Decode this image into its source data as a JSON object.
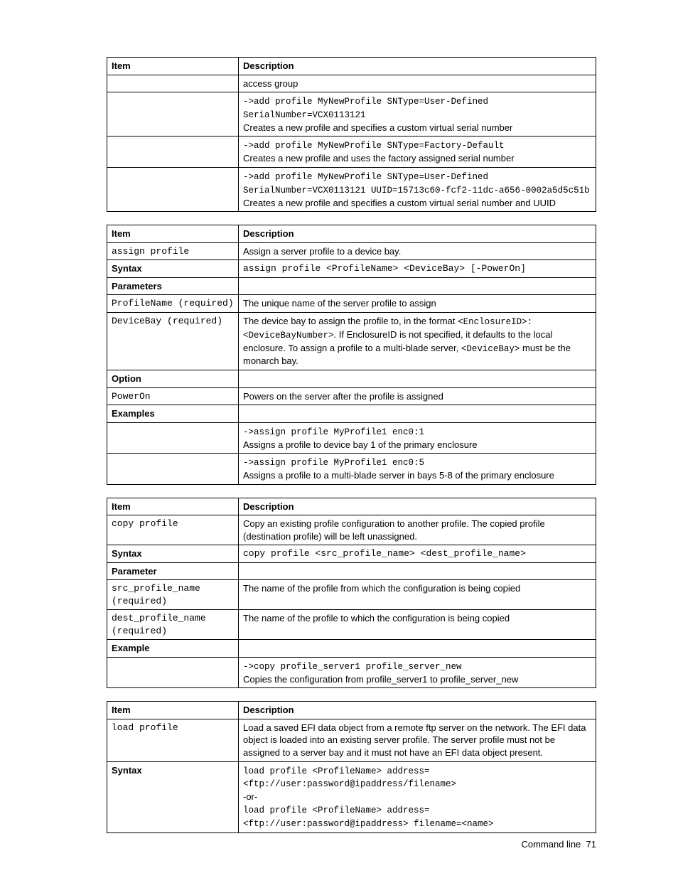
{
  "footer": {
    "text": "Command line",
    "page": "71"
  },
  "t1": {
    "h1": "Item",
    "h2": "Description",
    "r1c2": "access group",
    "r2_cmd": "->add profile MyNewProfile SNType=User-Defined SerialNumber=VCX0113121",
    "r2_desc": "Creates a new profile and specifies a custom virtual serial number",
    "r3_cmd": "->add profile MyNewProfile SNType=Factory-Default",
    "r3_desc": "Creates a new profile and uses the factory assigned serial number",
    "r4_cmd": "->add profile MyNewProfile SNType=User-Defined SerialNumber=VCX0113121 UUID=15713c60-fcf2-11dc-a656-0002a5d5c51b",
    "r4_desc": "Creates a new profile and specifies a custom virtual serial number and UUID"
  },
  "t2": {
    "h1": "Item",
    "h2": "Description",
    "r1c1": "assign profile",
    "r1c2": "Assign a server profile to a device bay.",
    "r2c1": "Syntax",
    "r2c2": "assign profile <ProfileName> <DeviceBay> [-PowerOn]",
    "r3c1": "Parameters",
    "r4c1": "ProfileName (required)",
    "r4c2": "The unique name of the server profile to assign",
    "r5c1": "DeviceBay (required)",
    "r5c2_a": "The device bay to assign the profile to, in the format ",
    "r5c2_b": "<EnclosureID>:<DeviceBayNumber>",
    "r5c2_c": ". If EnclosureID is not specified, it defaults to the local enclosure. To assign a profile to a multi-blade server, ",
    "r5c2_d": "<DeviceBay>",
    "r5c2_e": " must be the monarch bay.",
    "r6c1": "Option",
    "r7c1": "PowerOn",
    "r7c2": "Powers on the server after the profile is assigned",
    "r8c1": "Examples",
    "r9_cmd": "->assign profile MyProfile1 enc0:1",
    "r9_desc": "Assigns a profile to device bay 1 of the primary enclosure",
    "r10_cmd": "->assign profile MyProfile1 enc0:5",
    "r10_desc": "Assigns a profile to a multi-blade server in bays 5-8 of the primary enclosure"
  },
  "t3": {
    "h1": "Item",
    "h2": "Description",
    "r1c1": "copy profile",
    "r1c2": "Copy an existing profile configuration to another profile. The copied profile (destination profile) will be left unassigned.",
    "r2c1": "Syntax",
    "r2c2": "copy profile <src_profile_name> <dest_profile_name>",
    "r3c1": "Parameter",
    "r4c1": "src_profile_name (required)",
    "r4c2": "The name of the profile from which the configuration is being copied",
    "r5c1": "dest_profile_name (required)",
    "r5c2": "The name of the profile to which the configuration is being copied",
    "r6c1": "Example",
    "r7_cmd": "->copy profile_server1 profile_server_new",
    "r7_desc": "Copies the configuration from profile_server1 to profile_server_new"
  },
  "t4": {
    "h1": "Item",
    "h2": "Description",
    "r1c1": "load profile",
    "r1c2": "Load a saved EFI data object from a remote ftp server on the network. The EFI data object is loaded into an existing server profile. The server profile must not be assigned to a server bay and it must not have an EFI data object present.",
    "r2c1": "Syntax",
    "r2c2_a": "load profile <ProfileName> address=<ftp://user:password@ipaddress/filename>",
    "r2c2_or": "-or-",
    "r2c2_b": "load profile <ProfileName> address=<ftp://user:password@ipaddress> filename=<name>"
  }
}
